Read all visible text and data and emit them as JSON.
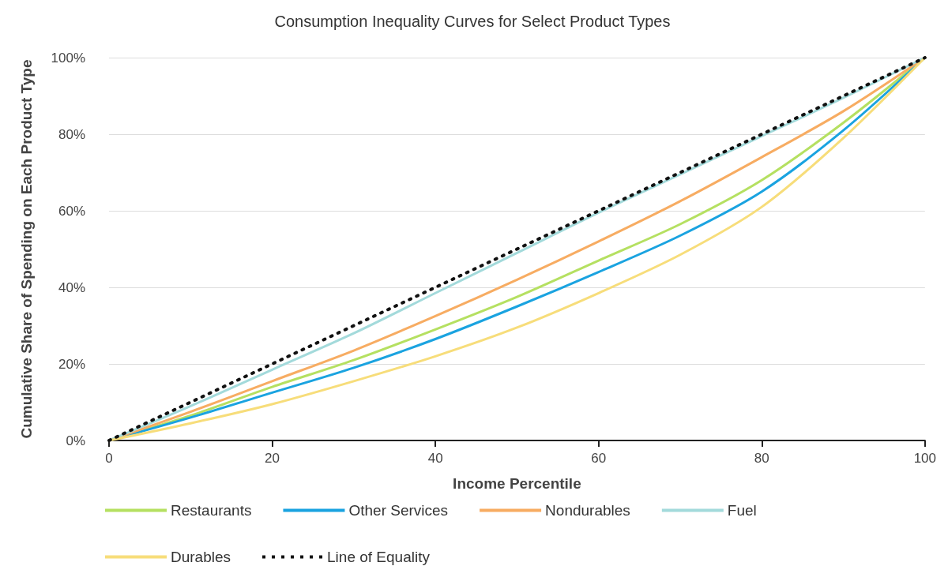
{
  "chart_data": {
    "type": "line",
    "title": "Consumption Inequality Curves for Select Product Types",
    "xlabel": "Income Percentile",
    "ylabel": "Cumulative Share of Spending on Each Product Type",
    "x": [
      0,
      10,
      20,
      30,
      40,
      50,
      60,
      70,
      80,
      90,
      100
    ],
    "series": [
      {
        "name": "Restaurants",
        "color": "#b5e061",
        "values": [
          0,
          6.5,
          14,
          21,
          29,
          37.5,
          47,
          56.5,
          68,
          83,
          100
        ]
      },
      {
        "name": "Other Services",
        "color": "#1aa3e0",
        "values": [
          0,
          6,
          12.5,
          19,
          26.5,
          35,
          44,
          53.5,
          65,
          81,
          100
        ]
      },
      {
        "name": "Nondurables",
        "color": "#f7ac62",
        "values": [
          0,
          7.5,
          15.5,
          23.5,
          32.5,
          42,
          52,
          62.5,
          74,
          86,
          100
        ]
      },
      {
        "name": "Fuel",
        "color": "#a3dadb",
        "values": [
          0,
          9,
          18.5,
          28,
          38.5,
          49,
          59.5,
          69.5,
          79.5,
          89.5,
          100
        ]
      },
      {
        "name": "Durables",
        "color": "#f7dd7a",
        "values": [
          0,
          4.5,
          9.5,
          15.5,
          22,
          29.5,
          38.5,
          48.5,
          61,
          79,
          100
        ]
      },
      {
        "name": "Line of Equality",
        "color": "#111111",
        "line_style": "dotted",
        "x": [
          0,
          100
        ],
        "values": [
          0,
          100
        ]
      }
    ],
    "xlim": [
      0,
      100
    ],
    "xticks": [
      0,
      20,
      40,
      60,
      80,
      100
    ],
    "ylim": [
      0,
      100
    ],
    "yticks": [
      {
        "value": 0,
        "label": "0%"
      },
      {
        "value": 20,
        "label": "20%"
      },
      {
        "value": 40,
        "label": "40%"
      },
      {
        "value": 60,
        "label": "60%"
      },
      {
        "value": 80,
        "label": "80%"
      },
      {
        "value": 100,
        "label": "100%"
      }
    ],
    "grid": "y",
    "legend": "bottom",
    "marker": "none",
    "line_style": "solid"
  }
}
